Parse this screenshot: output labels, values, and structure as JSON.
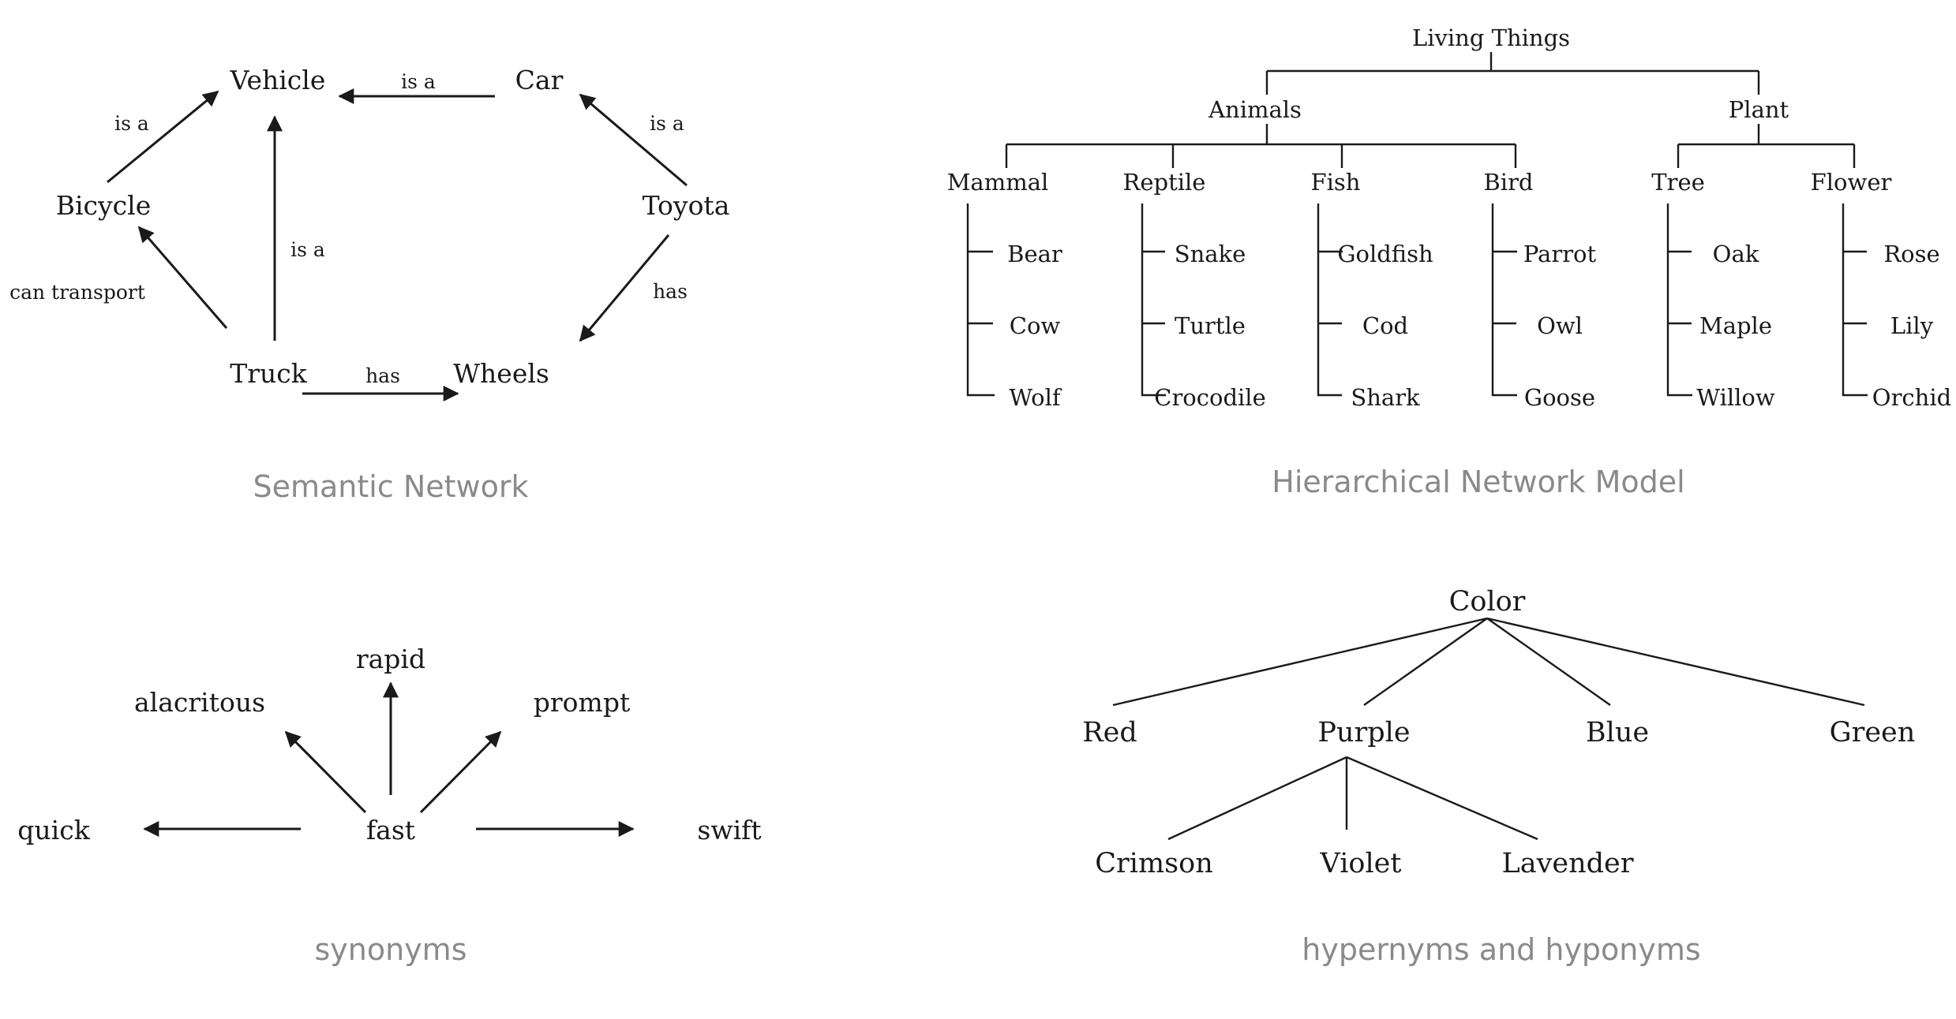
{
  "semantic_network": {
    "caption": "Semantic Network",
    "nodes": {
      "vehicle": "Vehicle",
      "car": "Car",
      "bicycle": "Bicycle",
      "toyota": "Toyota",
      "truck": "Truck",
      "wheels": "Wheels"
    },
    "edge_labels": {
      "car_vehicle": "is a",
      "bicycle_vehicle": "is a",
      "toyota_car": "is a",
      "truck_vehicle": "is a",
      "truck_bicycle": "can transport",
      "toyota_wheels": "has",
      "truck_wheels": "has"
    }
  },
  "hierarchical_model": {
    "caption": "Hierarchical Network Model",
    "root": "Living Things",
    "animals": {
      "label": "Animals",
      "groups": [
        {
          "label": "Mammal",
          "items": [
            "Bear",
            "Cow",
            "Wolf"
          ]
        },
        {
          "label": "Reptile",
          "items": [
            "Snake",
            "Turtle",
            "Crocodile"
          ]
        },
        {
          "label": "Fish",
          "items": [
            "Goldfish",
            "Cod",
            "Shark"
          ]
        },
        {
          "label": "Bird",
          "items": [
            "Parrot",
            "Owl",
            "Goose"
          ]
        }
      ]
    },
    "plant": {
      "label": "Plant",
      "groups": [
        {
          "label": "Tree",
          "items": [
            "Oak",
            "Maple",
            "Willow"
          ]
        },
        {
          "label": "Flower",
          "items": [
            "Rose",
            "Lily",
            "Orchid"
          ]
        }
      ]
    }
  },
  "synonyms": {
    "caption": "synonyms",
    "center": "fast",
    "words": {
      "rapid": "rapid",
      "alacritous": "alacritous",
      "prompt": "prompt",
      "quick": "quick",
      "swift": "swift"
    }
  },
  "hypernyms": {
    "caption": "hypernyms and hyponyms",
    "root": "Color",
    "children": [
      "Red",
      "Purple",
      "Blue",
      "Green"
    ],
    "purple_children": [
      "Crimson",
      "Violet",
      "Lavender"
    ]
  },
  "colors": {
    "ink": "#1a1a1a",
    "caption": "#8a8a8a"
  }
}
